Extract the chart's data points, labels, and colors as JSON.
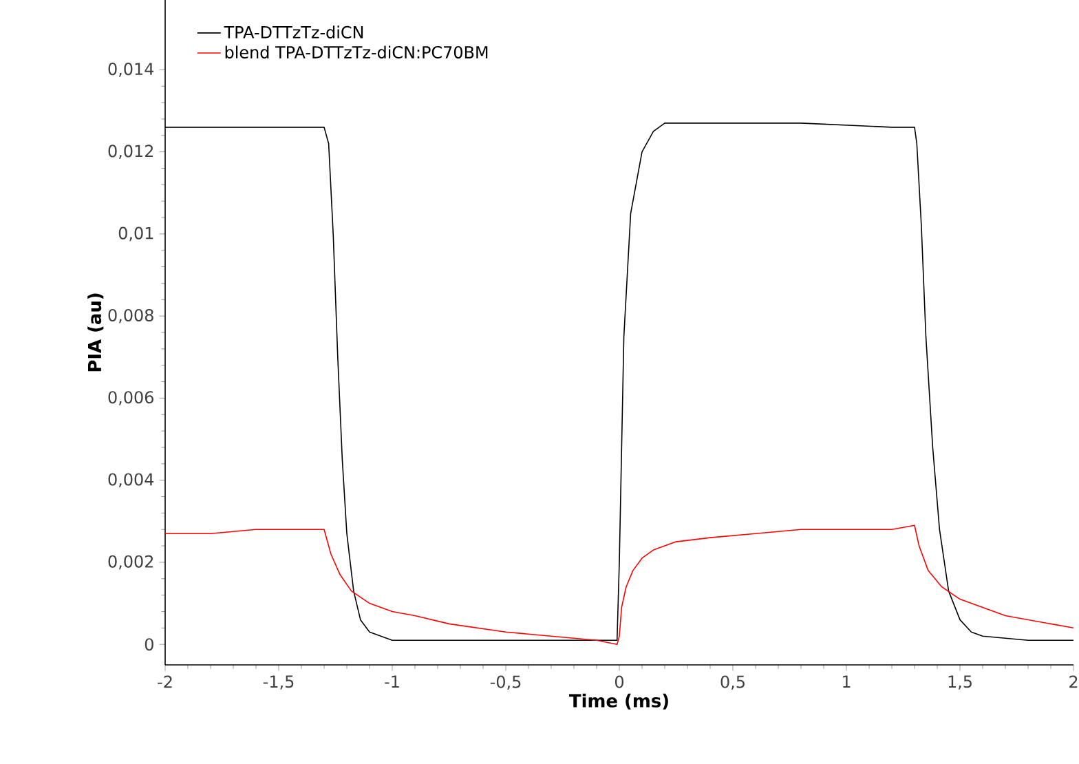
{
  "chart_data": {
    "type": "line",
    "xlabel": "Time (ms)",
    "ylabel": "PIA (au)",
    "xlim": [
      -2,
      2
    ],
    "ylim": [
      -0.0005,
      0.0157
    ],
    "xticks": [
      -2,
      {
        "value": -1.5,
        "label": "-1,5"
      },
      -1,
      {
        "value": -0.5,
        "label": "-0,5"
      },
      0,
      {
        "value": 0.5,
        "label": "0,5"
      },
      1,
      {
        "value": 1.5,
        "label": "1,5"
      },
      2
    ],
    "yticks": [
      0,
      {
        "value": 0.002,
        "label": "0,002"
      },
      {
        "value": 0.004,
        "label": "0,004"
      },
      {
        "value": 0.006,
        "label": "0,006"
      },
      {
        "value": 0.008,
        "label": "0,008"
      },
      {
        "value": 0.01,
        "label": "0,01"
      },
      {
        "value": 0.012,
        "label": "0,012"
      },
      {
        "value": 0.014,
        "label": "0,014"
      }
    ],
    "legend": "top left",
    "marker": "none",
    "line_style": "solid",
    "series": [
      {
        "name": "TPA-DTTzTz-diCN",
        "color": "#000000",
        "x": [
          -2,
          -1.8,
          -1.6,
          -1.4,
          -1.3,
          -1.28,
          -1.26,
          -1.24,
          -1.22,
          -1.2,
          -1.17,
          -1.14,
          -1.1,
          -1.05,
          -1,
          -0.8,
          -0.5,
          -0.2,
          -0.01,
          0,
          0.02,
          0.05,
          0.1,
          0.15,
          0.2,
          0.4,
          0.8,
          1.2,
          1.3,
          1.31,
          1.33,
          1.35,
          1.38,
          1.41,
          1.45,
          1.5,
          1.55,
          1.6,
          1.8,
          2
        ],
        "values": [
          0.0126,
          0.0126,
          0.0126,
          0.0126,
          0.0126,
          0.0122,
          0.01,
          0.007,
          0.0045,
          0.0027,
          0.0013,
          0.0006,
          0.0003,
          0.0002,
          0.0001,
          0.0001,
          0.0001,
          0.0001,
          0.0001,
          0.002,
          0.0075,
          0.0105,
          0.012,
          0.0125,
          0.0127,
          0.0127,
          0.0127,
          0.0126,
          0.0126,
          0.0122,
          0.0102,
          0.0075,
          0.0048,
          0.0028,
          0.0013,
          0.0006,
          0.0003,
          0.0002,
          0.0001,
          0.0001
        ]
      },
      {
        "name": "blend TPA-DTTzTz-diCN:PC70BM",
        "color": "#ff0000",
        "x": [
          -2,
          -1.8,
          -1.6,
          -1.4,
          -1.3,
          -1.27,
          -1.23,
          -1.18,
          -1.1,
          -1,
          -0.9,
          -0.75,
          -0.5,
          -0.3,
          -0.1,
          -0.01,
          0,
          0.01,
          0.03,
          0.06,
          0.1,
          0.15,
          0.25,
          0.4,
          0.6,
          0.8,
          1,
          1.2,
          1.3,
          1.32,
          1.36,
          1.42,
          1.5,
          1.6,
          1.7,
          1.8,
          1.9,
          2
        ],
        "values": [
          0.0027,
          0.0027,
          0.0028,
          0.0028,
          0.0028,
          0.0022,
          0.0017,
          0.0013,
          0.001,
          0.0008,
          0.0007,
          0.0005,
          0.0003,
          0.0002,
          0.0001,
          0,
          0.0002,
          0.0009,
          0.0014,
          0.0018,
          0.0021,
          0.0023,
          0.0025,
          0.0026,
          0.0027,
          0.0028,
          0.0028,
          0.0028,
          0.0029,
          0.0024,
          0.0018,
          0.0014,
          0.0011,
          0.0009,
          0.0007,
          0.0006,
          0.0005,
          0.0004
        ]
      }
    ]
  }
}
